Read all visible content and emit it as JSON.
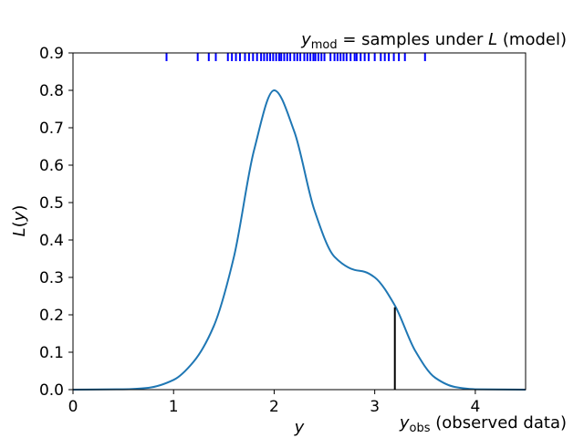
{
  "chart_data": {
    "type": "line",
    "xlabel": "y",
    "ylabel": "L(y)",
    "xlim": [
      0,
      4.5
    ],
    "ylim": [
      0,
      0.9
    ],
    "x_ticks": [
      0,
      1,
      2,
      3,
      4
    ],
    "y_ticks": [
      0.0,
      0.1,
      0.2,
      0.3,
      0.4,
      0.5,
      0.6,
      0.7,
      0.8,
      0.9
    ],
    "grid": false,
    "curve_color": "#1f77b4",
    "rug_color": "#0000ff",
    "obs_color": "#000000",
    "series": [
      {
        "x": [
          0,
          0.5,
          0.75,
          1.0,
          1.2,
          1.4,
          1.6,
          1.8,
          2.0,
          2.2,
          2.4,
          2.6,
          2.8,
          2.9,
          3.0,
          3.2,
          3.4,
          3.6,
          3.8,
          4.0,
          4.5
        ],
        "y": [
          0.0,
          0.001,
          0.005,
          0.026,
          0.075,
          0.17,
          0.355,
          0.64,
          0.8,
          0.69,
          0.48,
          0.355,
          0.32,
          0.315,
          0.3,
          0.225,
          0.105,
          0.032,
          0.007,
          0.001,
          0.0
        ]
      }
    ],
    "rug_samples": [
      0.93,
      1.24,
      1.35,
      1.42,
      1.54,
      1.58,
      1.62,
      1.66,
      1.71,
      1.75,
      1.79,
      1.83,
      1.87,
      1.9,
      1.93,
      1.96,
      1.99,
      2.02,
      2.05,
      2.07,
      2.1,
      2.13,
      2.16,
      2.2,
      2.23,
      2.26,
      2.3,
      2.33,
      2.36,
      2.39,
      2.41,
      2.44,
      2.47,
      2.5,
      2.56,
      2.6,
      2.63,
      2.66,
      2.69,
      2.72,
      2.76,
      2.8,
      2.82,
      2.86,
      2.9,
      2.94,
      3.0,
      3.06,
      3.1,
      3.14,
      3.19,
      3.24,
      3.3,
      3.5
    ],
    "observed_value": 3.2,
    "observed_height": 0.22,
    "annotations": {
      "top_prefix": "y",
      "top_sub": "mod",
      "top_mid": " = samples under ",
      "top_L": "L",
      "top_suffix": " (model)",
      "bottom_prefix": "y",
      "bottom_sub": "obs",
      "bottom_suffix": " (observed data)"
    }
  }
}
